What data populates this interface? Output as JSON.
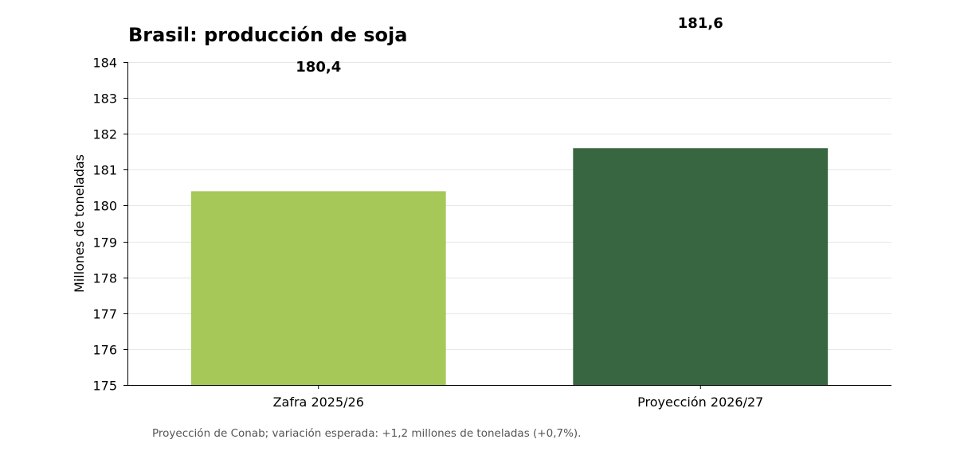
{
  "chart_data": {
    "type": "bar",
    "title": "Brasil: producción de soja",
    "xlabel": "",
    "ylabel": "Millones de toneladas",
    "categories": [
      "Zafra 2025/26",
      "Proyección 2026/27"
    ],
    "values": [
      180.4,
      181.6
    ],
    "data_labels": [
      "180,4",
      "181,6"
    ],
    "colors": [
      "#a6c858",
      "#386641"
    ],
    "ylim": [
      175,
      184
    ],
    "yticks": [
      175,
      176,
      177,
      178,
      179,
      180,
      181,
      182,
      183,
      184
    ],
    "grid": true,
    "legend": "none"
  },
  "footnote": "Proyección de Conab; variación esperada: +1,2 millones de toneladas (+0,7%)."
}
